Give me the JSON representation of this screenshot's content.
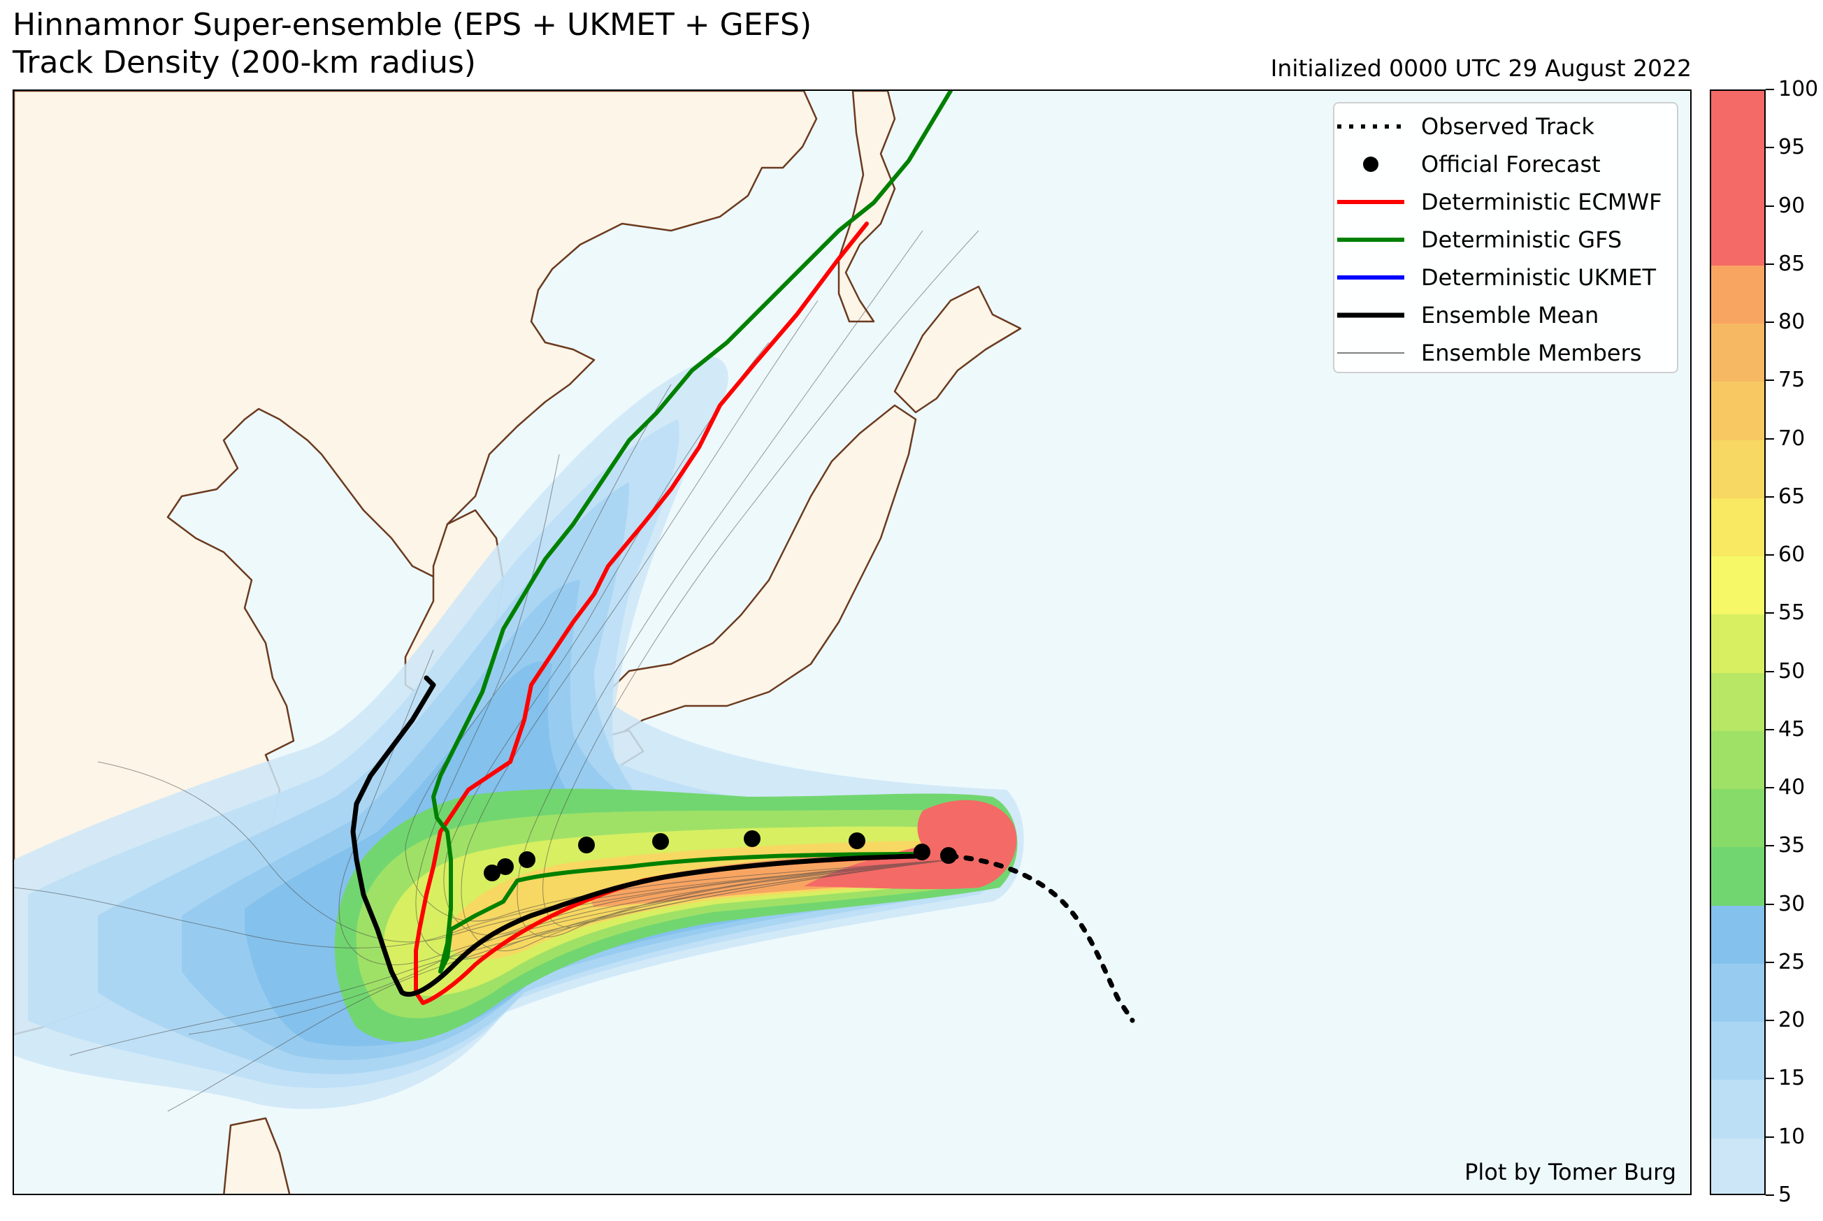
{
  "title": {
    "line1": "Hinnamnor Super-ensemble (EPS + UKMET + GEFS)",
    "line2": "Track Density (200-km radius)",
    "initialized": "Initialized 0000 UTC 29 August 2022"
  },
  "credit": "Plot by Tomer Burg",
  "colors": {
    "ocean": "#eef9fc",
    "land": "#fcf5e8",
    "coastline": "#6b3a1e",
    "observed": "#000000",
    "ecmwf": "#ff0000",
    "gfs": "#008000",
    "ukmet": "#0000ff",
    "ensemble_mean": "#000000",
    "members": "#555555"
  },
  "legend": [
    {
      "label": "Observed Track",
      "symbol": "dotted-line"
    },
    {
      "label": "Official Forecast",
      "symbol": "dot"
    },
    {
      "label": "Deterministic ECMWF",
      "symbol": "red-line"
    },
    {
      "label": "Deterministic GFS",
      "symbol": "green-line"
    },
    {
      "label": "Deterministic UKMET",
      "symbol": "blue-line"
    },
    {
      "label": "Ensemble Mean",
      "symbol": "black-line"
    },
    {
      "label": "Ensemble Members",
      "symbol": "thin-line"
    }
  ],
  "colorbar": {
    "ticks": [
      "5",
      "10",
      "15",
      "20",
      "25",
      "30",
      "35",
      "40",
      "45",
      "50",
      "55",
      "60",
      "65",
      "70",
      "75",
      "80",
      "85",
      "90",
      "95",
      "100"
    ],
    "bins": [
      {
        "from": 5,
        "to": 10,
        "color": "#cce6f7"
      },
      {
        "from": 10,
        "to": 15,
        "color": "#bcdff5"
      },
      {
        "from": 15,
        "to": 20,
        "color": "#abd6f3"
      },
      {
        "from": 20,
        "to": 25,
        "color": "#97ccf0"
      },
      {
        "from": 25,
        "to": 30,
        "color": "#84c1ec"
      },
      {
        "from": 30,
        "to": 35,
        "color": "#72d670"
      },
      {
        "from": 35,
        "to": 40,
        "color": "#87db69"
      },
      {
        "from": 40,
        "to": 45,
        "color": "#9fe166"
      },
      {
        "from": 45,
        "to": 50,
        "color": "#b7e765"
      },
      {
        "from": 50,
        "to": 55,
        "color": "#d8ef62"
      },
      {
        "from": 55,
        "to": 60,
        "color": "#f6f867"
      },
      {
        "from": 60,
        "to": 65,
        "color": "#f8e862"
      },
      {
        "from": 65,
        "to": 70,
        "color": "#f7d862"
      },
      {
        "from": 70,
        "to": 75,
        "color": "#f8c963"
      },
      {
        "from": 75,
        "to": 80,
        "color": "#f7b864"
      },
      {
        "from": 80,
        "to": 85,
        "color": "#f8a562"
      },
      {
        "from": 85,
        "to": 100,
        "color": "#f46a66"
      }
    ]
  }
}
